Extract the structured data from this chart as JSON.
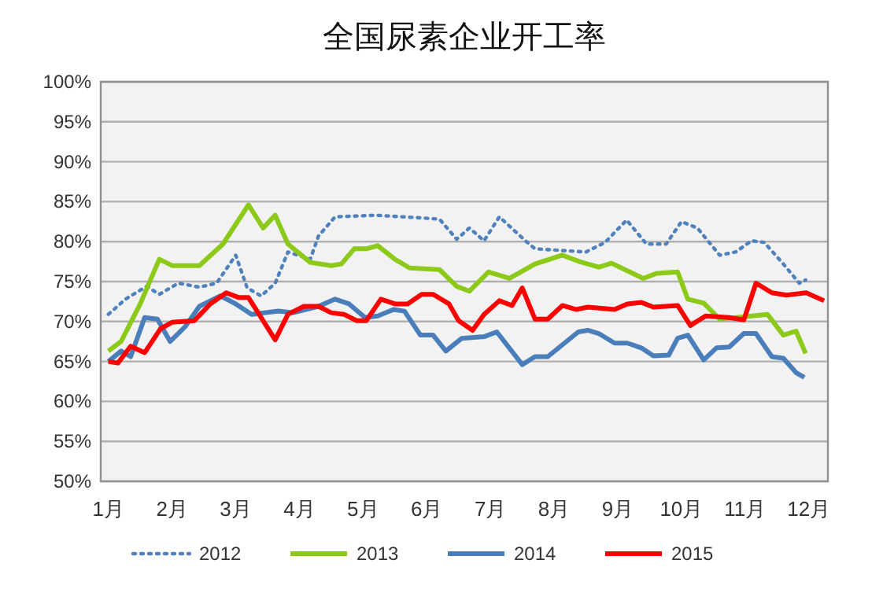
{
  "chart_data": {
    "type": "line",
    "title": "全国尿素企业开工率",
    "xlim": [
      0.88,
      12.3
    ],
    "xticks": [
      {
        "value": 1,
        "label": "1月"
      },
      {
        "value": 2,
        "label": "2月"
      },
      {
        "value": 3,
        "label": "3月"
      },
      {
        "value": 4,
        "label": "4月"
      },
      {
        "value": 5,
        "label": "5月"
      },
      {
        "value": 6,
        "label": "6月"
      },
      {
        "value": 7,
        "label": "7月"
      },
      {
        "value": 8,
        "label": "8月"
      },
      {
        "value": 9,
        "label": "9月"
      },
      {
        "value": 10,
        "label": "10月"
      },
      {
        "value": 11,
        "label": "11月"
      },
      {
        "value": 12,
        "label": "12月"
      }
    ],
    "ylim": [
      50,
      100
    ],
    "yticks": [
      {
        "value": 50,
        "label": "50%"
      },
      {
        "value": 55,
        "label": "55%"
      },
      {
        "value": 60,
        "label": "60%"
      },
      {
        "value": 65,
        "label": "65%"
      },
      {
        "value": 70,
        "label": "70%"
      },
      {
        "value": 75,
        "label": "75%"
      },
      {
        "value": 80,
        "label": "80%"
      },
      {
        "value": 85,
        "label": "85%"
      },
      {
        "value": 90,
        "label": "90%"
      },
      {
        "value": 95,
        "label": "95%"
      },
      {
        "value": 100,
        "label": "100%"
      }
    ],
    "grid": "y",
    "legend": "bottom",
    "line_style": "solid",
    "series": [
      {
        "name": "2012",
        "color": "#4f81bd",
        "line_style": "dotted",
        "x": [
          1.0,
          1.27,
          1.6,
          1.8,
          2.1,
          2.43,
          2.7,
          3.0,
          3.18,
          3.4,
          3.62,
          3.82,
          4.17,
          4.3,
          4.56,
          5.2,
          6.05,
          6.2,
          6.47,
          6.67,
          6.9,
          7.14,
          7.55,
          7.7,
          8.5,
          8.8,
          9.14,
          9.45,
          9.76,
          10.0,
          10.25,
          10.6,
          10.85,
          11.1,
          11.3,
          11.6,
          11.85,
          11.95
        ],
        "values": [
          70.9,
          72.8,
          74.4,
          73.4,
          74.8,
          74.3,
          74.8,
          78.3,
          74.2,
          73.2,
          74.8,
          78.7,
          77.8,
          80.7,
          83.1,
          83.3,
          82.9,
          82.8,
          80.3,
          81.7,
          80.1,
          83.1,
          80.1,
          79.1,
          78.7,
          79.9,
          82.7,
          79.7,
          79.7,
          82.5,
          81.7,
          78.3,
          78.7,
          80.1,
          79.9,
          77.2,
          74.8,
          75.2
        ]
      },
      {
        "name": "2013",
        "color": "#8cc919",
        "x": [
          1.0,
          1.2,
          1.5,
          1.8,
          2.0,
          2.43,
          2.8,
          3.2,
          3.43,
          3.62,
          3.82,
          4.17,
          4.5,
          4.66,
          4.86,
          5.05,
          5.23,
          5.5,
          5.73,
          6.2,
          6.47,
          6.67,
          6.97,
          7.3,
          7.7,
          8.13,
          8.4,
          8.7,
          8.9,
          9.4,
          9.6,
          9.94,
          10.1,
          10.35,
          10.6,
          11.35,
          11.6,
          11.8,
          11.95
        ],
        "values": [
          66.3,
          67.5,
          72.2,
          77.8,
          77.0,
          77.0,
          79.7,
          84.6,
          81.7,
          83.3,
          79.7,
          77.4,
          77.0,
          77.2,
          79.1,
          79.1,
          79.5,
          77.8,
          76.7,
          76.5,
          74.4,
          73.8,
          76.2,
          75.4,
          77.2,
          78.3,
          77.5,
          76.8,
          77.3,
          75.4,
          76.0,
          76.2,
          72.8,
          72.3,
          70.3,
          70.9,
          68.3,
          68.8,
          66.0
        ]
      },
      {
        "name": "2014",
        "color": "#4a7ebb",
        "x": [
          1.0,
          1.2,
          1.35,
          1.57,
          1.77,
          1.97,
          2.2,
          2.43,
          2.76,
          3.0,
          3.25,
          3.67,
          3.9,
          4.3,
          4.56,
          4.78,
          5.03,
          5.23,
          5.48,
          5.65,
          5.9,
          6.1,
          6.3,
          6.55,
          6.9,
          7.1,
          7.5,
          7.7,
          7.9,
          8.38,
          8.53,
          8.7,
          8.95,
          9.15,
          9.37,
          9.56,
          9.8,
          9.94,
          10.1,
          10.35,
          10.55,
          10.75,
          10.98,
          11.17,
          11.42,
          11.6,
          11.8,
          11.93
        ],
        "values": [
          65.0,
          66.3,
          65.6,
          70.5,
          70.3,
          67.5,
          69.3,
          71.9,
          73.2,
          72.2,
          70.9,
          71.3,
          71.1,
          71.9,
          72.8,
          72.2,
          70.5,
          70.7,
          71.5,
          71.3,
          68.3,
          68.3,
          66.3,
          67.9,
          68.1,
          68.7,
          64.6,
          65.6,
          65.6,
          68.7,
          68.9,
          68.5,
          67.3,
          67.3,
          66.7,
          65.7,
          65.8,
          67.9,
          68.3,
          65.2,
          66.7,
          66.8,
          68.5,
          68.5,
          65.6,
          65.4,
          63.6,
          63.0
        ]
      },
      {
        "name": "2015",
        "color": "#ff0000",
        "x": [
          1.0,
          1.15,
          1.35,
          1.57,
          1.82,
          2.0,
          2.35,
          2.6,
          2.85,
          3.05,
          3.2,
          3.62,
          3.82,
          4.07,
          4.3,
          4.5,
          4.7,
          4.9,
          5.05,
          5.28,
          5.5,
          5.7,
          5.92,
          6.1,
          6.35,
          6.5,
          6.72,
          6.9,
          7.14,
          7.34,
          7.5,
          7.7,
          7.9,
          8.13,
          8.35,
          8.53,
          8.95,
          9.15,
          9.37,
          9.56,
          9.94,
          10.14,
          10.38,
          10.75,
          10.98,
          11.17,
          11.42,
          11.65,
          11.96,
          12.24
        ],
        "values": [
          65.0,
          64.8,
          66.9,
          66.1,
          69.1,
          69.9,
          70.1,
          72.2,
          73.6,
          73.0,
          73.0,
          67.7,
          70.9,
          71.9,
          71.9,
          71.1,
          70.9,
          70.1,
          70.1,
          72.8,
          72.2,
          72.2,
          73.4,
          73.4,
          72.2,
          70.1,
          68.9,
          70.9,
          72.6,
          72.0,
          74.2,
          70.3,
          70.3,
          72.0,
          71.5,
          71.8,
          71.5,
          72.2,
          72.4,
          71.8,
          72.0,
          69.5,
          70.7,
          70.5,
          70.2,
          74.8,
          73.6,
          73.3,
          73.6,
          72.6
        ]
      }
    ]
  }
}
